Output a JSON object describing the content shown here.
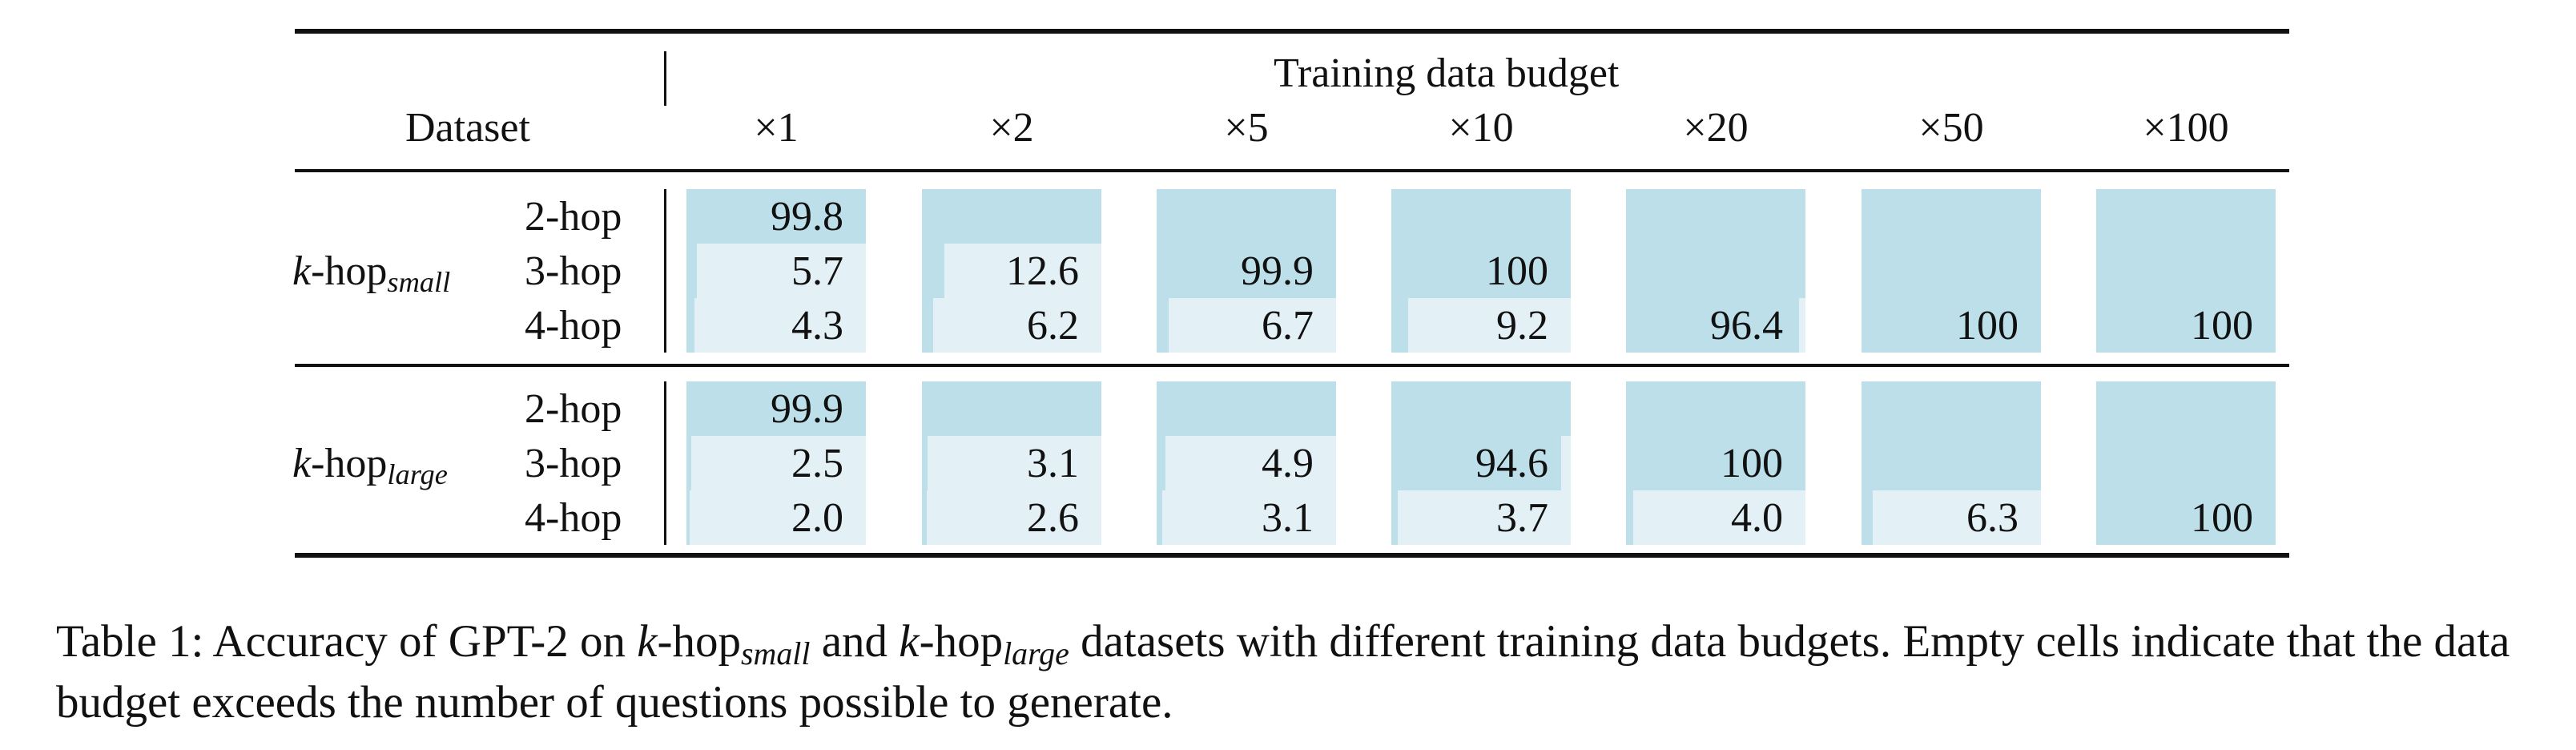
{
  "table": {
    "header": {
      "dataset": "Dataset",
      "budget": "Training data budget",
      "columns": [
        "×1",
        "×2",
        "×5",
        "×10",
        "×20",
        "×50",
        "×100"
      ]
    },
    "groups": [
      {
        "name_prefix": "k",
        "name_main": "-hop",
        "name_sub": "small",
        "rows": [
          {
            "label": "2-hop",
            "values": [
              "99.8",
              "",
              "",
              "",
              "",
              "",
              ""
            ]
          },
          {
            "label": "3-hop",
            "values": [
              "5.7",
              "12.6",
              "99.9",
              "100",
              "",
              "",
              ""
            ]
          },
          {
            "label": "4-hop",
            "values": [
              "4.3",
              "6.2",
              "6.7",
              "9.2",
              "96.4",
              "100",
              "100"
            ]
          }
        ]
      },
      {
        "name_prefix": "k",
        "name_main": "-hop",
        "name_sub": "large",
        "rows": [
          {
            "label": "2-hop",
            "values": [
              "99.9",
              "",
              "",
              "",
              "",
              "",
              ""
            ]
          },
          {
            "label": "3-hop",
            "values": [
              "2.5",
              "3.1",
              "4.9",
              "94.6",
              "100",
              "",
              ""
            ]
          },
          {
            "label": "4-hop",
            "values": [
              "2.0",
              "2.6",
              "3.1",
              "3.7",
              "4.0",
              "6.3",
              "100"
            ]
          }
        ]
      }
    ]
  },
  "caption": {
    "label": "Table 1:",
    "p1": " Accuracy of GPT-2 on ",
    "k1": "k",
    "hop1": "-hop",
    "sub1": "small",
    "p2": " and ",
    "k2": "k",
    "hop2": "-hop",
    "sub2": "large",
    "p3": " datasets with different training data budgets. Empty cells indicate that the data budget exceeds the number of questions possible to generate."
  }
}
